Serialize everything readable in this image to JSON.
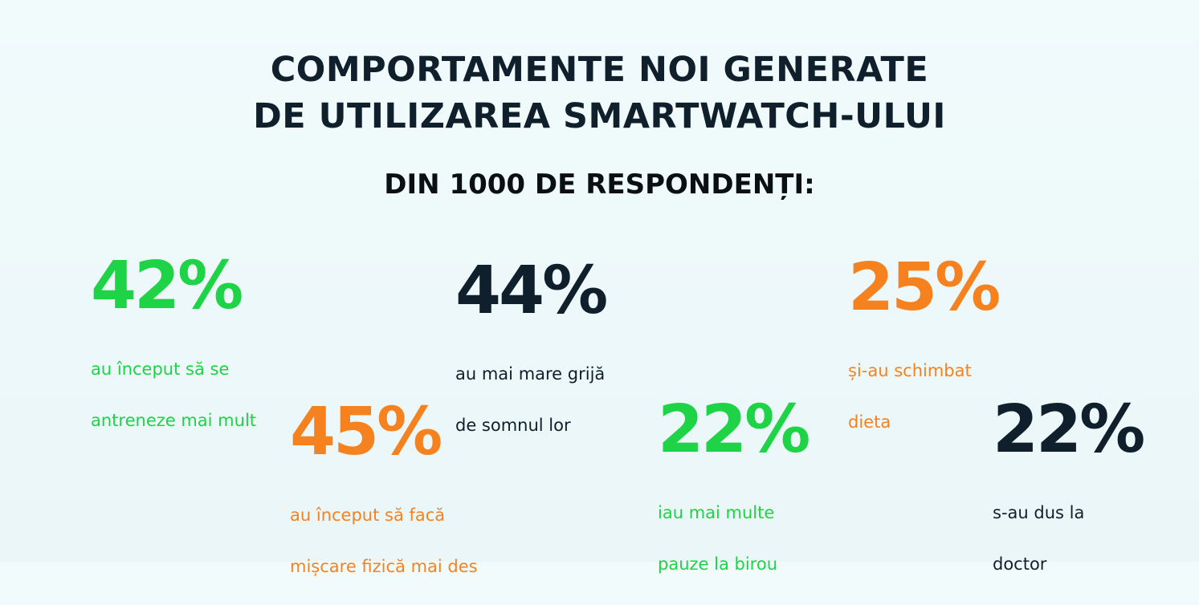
{
  "title": {
    "line1": "COMPORTAMENTE NOI GENERATE",
    "line2": "DE UTILIZAREA SMARTWATCH-ULUI"
  },
  "subtitle": "DIN 1000 DE RESPONDENȚI:",
  "colors": {
    "green": "#1fd346",
    "dark": "#0f1f2b",
    "orange": "#f5821f"
  },
  "stats": [
    {
      "value": "42%",
      "line1": "au început să se",
      "line2": "antreneze mai mult",
      "color": "green"
    },
    {
      "value": "44%",
      "line1": "au mai mare grijă",
      "line2": "de somnul lor",
      "color": "dark"
    },
    {
      "value": "25%",
      "line1": "și-au schimbat",
      "line2": "dieta",
      "color": "orange"
    },
    {
      "value": "45%",
      "line1": "au început să facă",
      "line2": "mișcare fizică mai des",
      "color": "orange"
    },
    {
      "value": "22%",
      "line1": "iau mai multe",
      "line2": "pauze la birou",
      "color": "green"
    },
    {
      "value": "22%",
      "line1": "s-au dus la",
      "line2": "doctor",
      "color": "dark"
    }
  ]
}
